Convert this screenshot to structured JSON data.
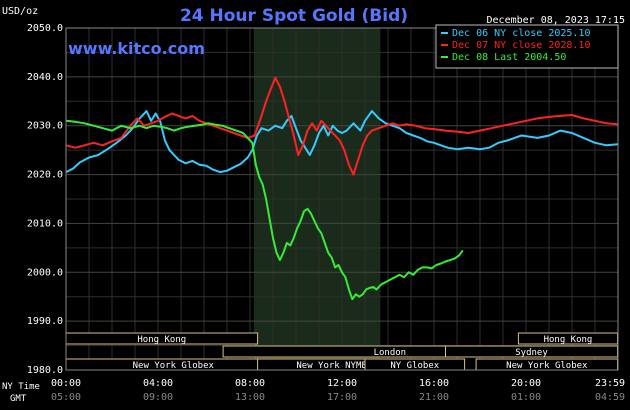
{
  "chart_data": {
    "type": "line",
    "title": "24 Hour Spot Gold (Bid)",
    "ylabel": "USD/oz",
    "watermark": "www.kitco.com",
    "timestamp": "December 08, 2023 17:15",
    "ylim": [
      1980,
      2050
    ],
    "y_ticks": [
      "2050.0",
      "2040.0",
      "2030.0",
      "2020.0",
      "2010.0",
      "2000.0",
      "1990.0",
      "1980.0"
    ],
    "y_tick_values": [
      2050,
      2040,
      2030,
      2020,
      2010,
      2000,
      1990,
      1980
    ],
    "xlim": [
      0,
      24
    ],
    "x_row_labels": {
      "ny": "NY Time",
      "gmt": "GMT"
    },
    "x_ticks_ny": [
      "00:00",
      "04:00",
      "08:00",
      "12:00",
      "16:00",
      "20:00",
      "23:59"
    ],
    "x_ticks_gmt": [
      "05:00",
      "09:00",
      "13:00",
      "17:00",
      "21:00",
      "01:00",
      "04:59"
    ],
    "x_tick_values": [
      0,
      4,
      8,
      12,
      16,
      20,
      23.98
    ],
    "session_highlight": [
      8.17,
      13.67
    ],
    "grid": true,
    "legend_position": "top-right",
    "series": [
      {
        "name": "Dec 06 NY close 2025.10",
        "color": "#33ccff",
        "points": [
          [
            0.0,
            2020.5
          ],
          [
            0.3,
            2021.2
          ],
          [
            0.6,
            2022.5
          ],
          [
            1.0,
            2023.5
          ],
          [
            1.4,
            2024.0
          ],
          [
            1.8,
            2025.2
          ],
          [
            2.2,
            2026.5
          ],
          [
            2.6,
            2028.0
          ],
          [
            2.9,
            2029.5
          ],
          [
            3.2,
            2031.5
          ],
          [
            3.5,
            2033.0
          ],
          [
            3.7,
            2031.0
          ],
          [
            3.9,
            2032.5
          ],
          [
            4.1,
            2030.8
          ],
          [
            4.3,
            2027.0
          ],
          [
            4.5,
            2025.0
          ],
          [
            4.7,
            2024.0
          ],
          [
            4.9,
            2023.0
          ],
          [
            5.2,
            2022.3
          ],
          [
            5.5,
            2022.8
          ],
          [
            5.8,
            2022.0
          ],
          [
            6.1,
            2021.8
          ],
          [
            6.4,
            2021.0
          ],
          [
            6.7,
            2020.5
          ],
          [
            7.0,
            2020.8
          ],
          [
            7.3,
            2021.5
          ],
          [
            7.6,
            2022.2
          ],
          [
            7.9,
            2023.5
          ],
          [
            8.1,
            2025.0
          ],
          [
            8.3,
            2028.0
          ],
          [
            8.5,
            2029.5
          ],
          [
            8.8,
            2029.0
          ],
          [
            9.1,
            2030.0
          ],
          [
            9.4,
            2029.5
          ],
          [
            9.6,
            2031.0
          ],
          [
            9.8,
            2032.0
          ],
          [
            10.0,
            2029.5
          ],
          [
            10.2,
            2027.0
          ],
          [
            10.4,
            2025.5
          ],
          [
            10.6,
            2024.0
          ],
          [
            10.8,
            2026.0
          ],
          [
            11.0,
            2028.5
          ],
          [
            11.2,
            2030.0
          ],
          [
            11.4,
            2028.0
          ],
          [
            11.6,
            2030.0
          ],
          [
            11.8,
            2029.0
          ],
          [
            12.0,
            2028.5
          ],
          [
            12.2,
            2029.0
          ],
          [
            12.5,
            2030.5
          ],
          [
            12.8,
            2029.0
          ],
          [
            13.0,
            2031.0
          ],
          [
            13.3,
            2033.0
          ],
          [
            13.6,
            2031.5
          ],
          [
            13.9,
            2030.5
          ],
          [
            14.2,
            2030.0
          ],
          [
            14.5,
            2029.5
          ],
          [
            14.8,
            2028.5
          ],
          [
            15.1,
            2028.0
          ],
          [
            15.4,
            2027.5
          ],
          [
            15.7,
            2026.8
          ],
          [
            16.0,
            2026.5
          ],
          [
            16.3,
            2026.0
          ],
          [
            16.6,
            2025.5
          ],
          [
            17.0,
            2025.2
          ],
          [
            17.5,
            2025.5
          ],
          [
            18.0,
            2025.2
          ],
          [
            18.4,
            2025.5
          ],
          [
            18.8,
            2026.5
          ],
          [
            19.2,
            2027.0
          ],
          [
            19.5,
            2027.5
          ],
          [
            19.8,
            2028.0
          ],
          [
            20.1,
            2027.8
          ],
          [
            20.5,
            2027.5
          ],
          [
            21.0,
            2028.0
          ],
          [
            21.5,
            2029.0
          ],
          [
            22.0,
            2028.5
          ],
          [
            22.5,
            2027.5
          ],
          [
            23.0,
            2026.5
          ],
          [
            23.5,
            2026.0
          ],
          [
            23.98,
            2026.2
          ]
        ]
      },
      {
        "name": "Dec 07 NY close 2028.10",
        "color": "#ff2222",
        "points": [
          [
            0.0,
            2026.0
          ],
          [
            0.4,
            2025.5
          ],
          [
            0.8,
            2026.0
          ],
          [
            1.2,
            2026.5
          ],
          [
            1.6,
            2026.0
          ],
          [
            2.0,
            2026.8
          ],
          [
            2.4,
            2027.5
          ],
          [
            2.8,
            2030.0
          ],
          [
            3.1,
            2031.5
          ],
          [
            3.4,
            2030.0
          ],
          [
            3.7,
            2030.5
          ],
          [
            4.0,
            2031.0
          ],
          [
            4.3,
            2031.8
          ],
          [
            4.6,
            2032.5
          ],
          [
            4.9,
            2032.0
          ],
          [
            5.2,
            2031.5
          ],
          [
            5.5,
            2032.0
          ],
          [
            5.8,
            2031.0
          ],
          [
            6.1,
            2030.5
          ],
          [
            6.4,
            2030.0
          ],
          [
            6.7,
            2029.5
          ],
          [
            7.0,
            2029.0
          ],
          [
            7.3,
            2028.5
          ],
          [
            7.6,
            2028.0
          ],
          [
            7.9,
            2027.5
          ],
          [
            8.2,
            2028.0
          ],
          [
            8.5,
            2032.0
          ],
          [
            8.7,
            2035.0
          ],
          [
            8.9,
            2037.5
          ],
          [
            9.1,
            2039.8
          ],
          [
            9.3,
            2038.0
          ],
          [
            9.5,
            2035.0
          ],
          [
            9.7,
            2031.5
          ],
          [
            9.9,
            2028.0
          ],
          [
            10.1,
            2024.0
          ],
          [
            10.3,
            2026.0
          ],
          [
            10.5,
            2029.0
          ],
          [
            10.7,
            2030.5
          ],
          [
            10.9,
            2029.0
          ],
          [
            11.1,
            2031.0
          ],
          [
            11.3,
            2030.0
          ],
          [
            11.5,
            2029.0
          ],
          [
            11.7,
            2028.0
          ],
          [
            11.9,
            2027.0
          ],
          [
            12.1,
            2025.0
          ],
          [
            12.3,
            2022.0
          ],
          [
            12.5,
            2020.0
          ],
          [
            12.7,
            2023.0
          ],
          [
            12.9,
            2026.0
          ],
          [
            13.1,
            2028.0
          ],
          [
            13.3,
            2029.0
          ],
          [
            13.6,
            2029.5
          ],
          [
            13.9,
            2030.0
          ],
          [
            14.2,
            2030.5
          ],
          [
            14.5,
            2030.0
          ],
          [
            14.8,
            2030.3
          ],
          [
            15.2,
            2030.0
          ],
          [
            15.6,
            2029.5
          ],
          [
            16.0,
            2029.3
          ],
          [
            16.5,
            2029.0
          ],
          [
            17.0,
            2028.8
          ],
          [
            17.5,
            2028.5
          ],
          [
            18.0,
            2029.0
          ],
          [
            18.5,
            2029.5
          ],
          [
            19.0,
            2030.0
          ],
          [
            19.5,
            2030.5
          ],
          [
            20.0,
            2031.0
          ],
          [
            20.5,
            2031.5
          ],
          [
            21.0,
            2031.8
          ],
          [
            21.5,
            2032.0
          ],
          [
            22.0,
            2032.2
          ],
          [
            22.5,
            2031.5
          ],
          [
            23.0,
            2031.0
          ],
          [
            23.5,
            2030.5
          ],
          [
            23.98,
            2030.3
          ]
        ]
      },
      {
        "name": "Dec 08 Last 2004.50",
        "color": "#33ee33",
        "points": [
          [
            0.0,
            2031.0
          ],
          [
            0.4,
            2030.8
          ],
          [
            0.8,
            2030.5
          ],
          [
            1.2,
            2030.0
          ],
          [
            1.6,
            2029.5
          ],
          [
            2.0,
            2029.0
          ],
          [
            2.4,
            2030.0
          ],
          [
            2.8,
            2029.5
          ],
          [
            3.2,
            2030.0
          ],
          [
            3.5,
            2029.5
          ],
          [
            3.8,
            2030.0
          ],
          [
            4.1,
            2029.8
          ],
          [
            4.4,
            2029.5
          ],
          [
            4.7,
            2029.0
          ],
          [
            5.0,
            2029.5
          ],
          [
            5.3,
            2029.8
          ],
          [
            5.6,
            2030.0
          ],
          [
            5.9,
            2030.2
          ],
          [
            6.2,
            2030.5
          ],
          [
            6.5,
            2030.2
          ],
          [
            6.8,
            2030.0
          ],
          [
            7.1,
            2029.5
          ],
          [
            7.4,
            2029.0
          ],
          [
            7.7,
            2028.5
          ],
          [
            7.9,
            2027.5
          ],
          [
            8.1,
            2026.5
          ],
          [
            8.25,
            2022.0
          ],
          [
            8.4,
            2019.5
          ],
          [
            8.55,
            2018.0
          ],
          [
            8.7,
            2015.0
          ],
          [
            8.85,
            2011.0
          ],
          [
            9.0,
            2007.0
          ],
          [
            9.15,
            2004.0
          ],
          [
            9.3,
            2002.5
          ],
          [
            9.45,
            2004.0
          ],
          [
            9.6,
            2006.0
          ],
          [
            9.75,
            2005.5
          ],
          [
            9.9,
            2007.0
          ],
          [
            10.05,
            2009.0
          ],
          [
            10.2,
            2010.5
          ],
          [
            10.35,
            2012.5
          ],
          [
            10.5,
            2013.0
          ],
          [
            10.65,
            2012.0
          ],
          [
            10.8,
            2010.5
          ],
          [
            10.95,
            2009.0
          ],
          [
            11.1,
            2008.0
          ],
          [
            11.25,
            2006.0
          ],
          [
            11.4,
            2004.0
          ],
          [
            11.55,
            2003.0
          ],
          [
            11.7,
            2001.0
          ],
          [
            11.85,
            2001.5
          ],
          [
            12.0,
            2000.0
          ],
          [
            12.15,
            1999.0
          ],
          [
            12.3,
            1996.5
          ],
          [
            12.45,
            1994.5
          ],
          [
            12.6,
            1995.5
          ],
          [
            12.75,
            1995.0
          ],
          [
            12.9,
            1995.5
          ],
          [
            13.05,
            1996.5
          ],
          [
            13.2,
            1996.8
          ],
          [
            13.35,
            1997.0
          ],
          [
            13.5,
            1996.5
          ],
          [
            13.7,
            1997.5
          ],
          [
            13.9,
            1998.0
          ],
          [
            14.1,
            1998.5
          ],
          [
            14.3,
            1999.0
          ],
          [
            14.5,
            1999.5
          ],
          [
            14.7,
            1999.0
          ],
          [
            14.9,
            2000.0
          ],
          [
            15.1,
            1999.5
          ],
          [
            15.3,
            2000.5
          ],
          [
            15.5,
            2001.0
          ],
          [
            15.7,
            2001.0
          ],
          [
            15.9,
            2000.8
          ],
          [
            16.1,
            2001.5
          ],
          [
            16.3,
            2001.8
          ],
          [
            16.5,
            2002.2
          ],
          [
            16.7,
            2002.5
          ],
          [
            16.9,
            2002.8
          ],
          [
            17.1,
            2003.5
          ],
          [
            17.25,
            2004.5
          ]
        ]
      }
    ],
    "sessions": [
      {
        "name": "Hong Kong",
        "row": 0,
        "start": 0.0,
        "end": 8.33
      },
      {
        "name": "Hong Kong",
        "row": 0,
        "start": 19.67,
        "end": 23.98
      },
      {
        "name": "London",
        "row": 1,
        "start": 6.83,
        "end": 21.33
      },
      {
        "name": "Sydney",
        "row": 1,
        "start": 16.5,
        "end": 23.98
      },
      {
        "name": "New York Globex",
        "row": 2,
        "start": 0.0,
        "end": 9.33
      },
      {
        "name": "New York NYMEX",
        "row": 2,
        "start": 8.33,
        "end": 15.0
      },
      {
        "name": "NY Globex",
        "row": 2,
        "start": 13.0,
        "end": 17.33
      },
      {
        "name": "New York Globex",
        "row": 2,
        "start": 17.83,
        "end": 23.98
      }
    ]
  }
}
